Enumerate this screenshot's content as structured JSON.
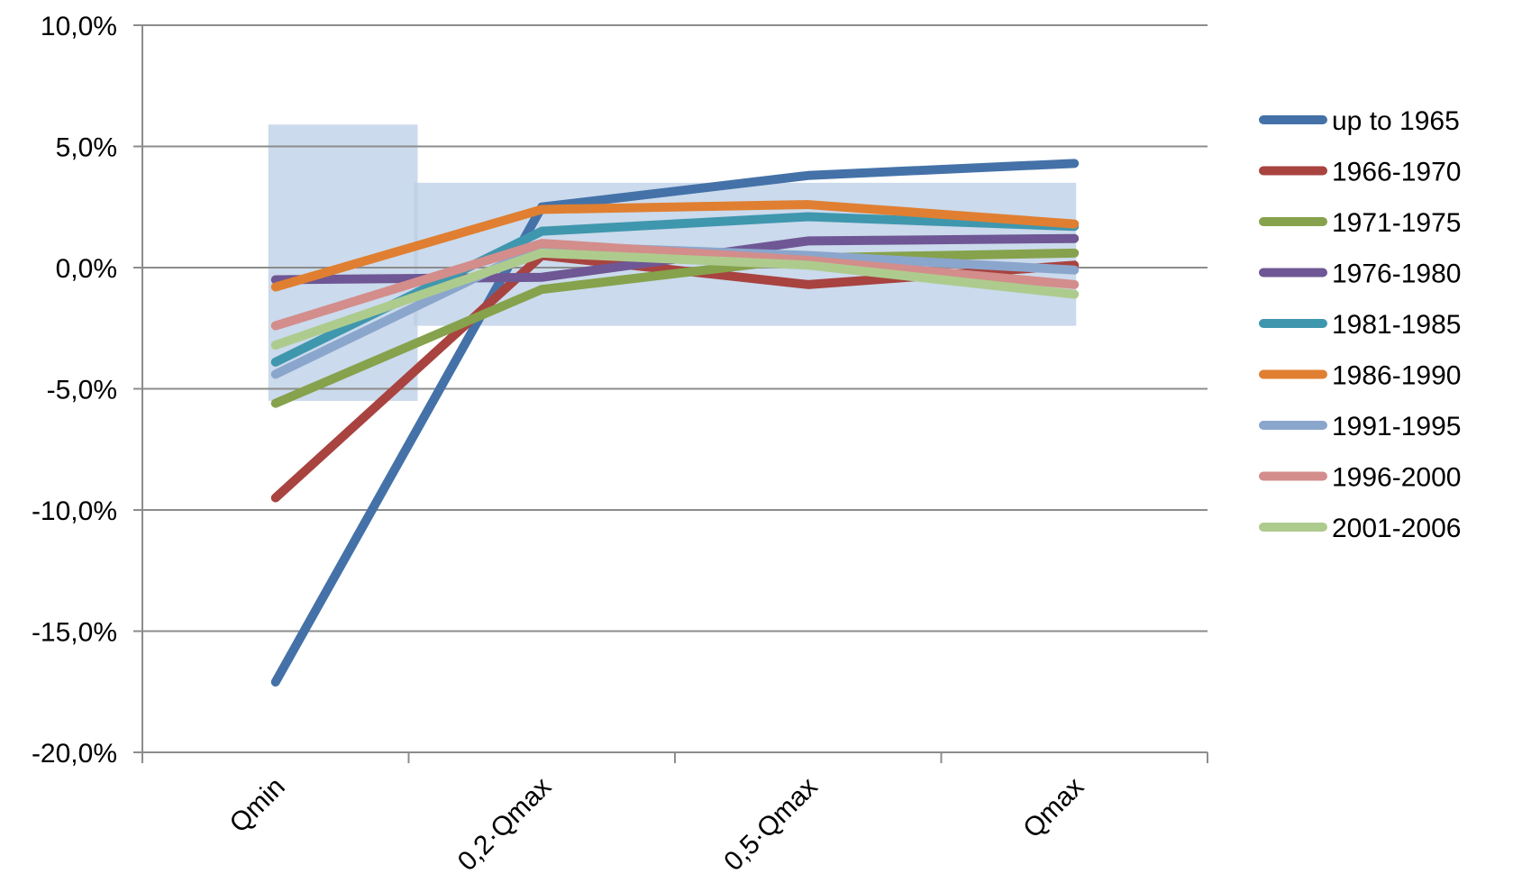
{
  "chart_data": {
    "type": "line",
    "categories": [
      "Qmin",
      "0,2·Qmax",
      "0,5·Qmax",
      "Qmax"
    ],
    "y_tick_labels": [
      "10,0%",
      "5,0%",
      "0,0%",
      "-5,0%",
      "-10,0%",
      "-15,0%",
      "-20,0%"
    ],
    "y_tick_values": [
      10,
      5,
      0,
      -5,
      -10,
      -15,
      -20
    ],
    "ylim": [
      -20,
      10
    ],
    "grid": true,
    "legend_position": "right",
    "shaded_ranges": [
      {
        "category": "Qmin",
        "y_min": -5.5,
        "y_max": 5.9
      },
      {
        "category_from": "0,2·Qmax",
        "category_to": "Qmax",
        "y_min": -2.4,
        "y_max": 3.5
      }
    ],
    "series": [
      {
        "name": "up to 1965",
        "color": "#4472A8",
        "values": [
          -17.1,
          2.5,
          3.8,
          4.3
        ]
      },
      {
        "name": "1966-1970",
        "color": "#A84340",
        "values": [
          -9.5,
          0.5,
          -0.7,
          0.1
        ]
      },
      {
        "name": "1971-1975",
        "color": "#86A24C",
        "values": [
          -5.6,
          -0.9,
          0.4,
          0.6
        ]
      },
      {
        "name": "1976-1980",
        "color": "#6E5794",
        "values": [
          -0.5,
          -0.4,
          1.1,
          1.2
        ]
      },
      {
        "name": "1981-1985",
        "color": "#3F97AE",
        "values": [
          -3.9,
          1.5,
          2.1,
          1.7
        ]
      },
      {
        "name": "1986-1990",
        "color": "#E07F31",
        "values": [
          -0.8,
          2.4,
          2.6,
          1.8
        ]
      },
      {
        "name": "1991-1995",
        "color": "#8BA6CC",
        "values": [
          -4.4,
          0.9,
          0.5,
          -0.1
        ]
      },
      {
        "name": "1996-2000",
        "color": "#D38D8B",
        "values": [
          -2.4,
          1.0,
          0.3,
          -0.7
        ]
      },
      {
        "name": "2001-2006",
        "color": "#AECB8E",
        "values": [
          -3.2,
          0.6,
          0.1,
          -1.1
        ]
      }
    ]
  }
}
